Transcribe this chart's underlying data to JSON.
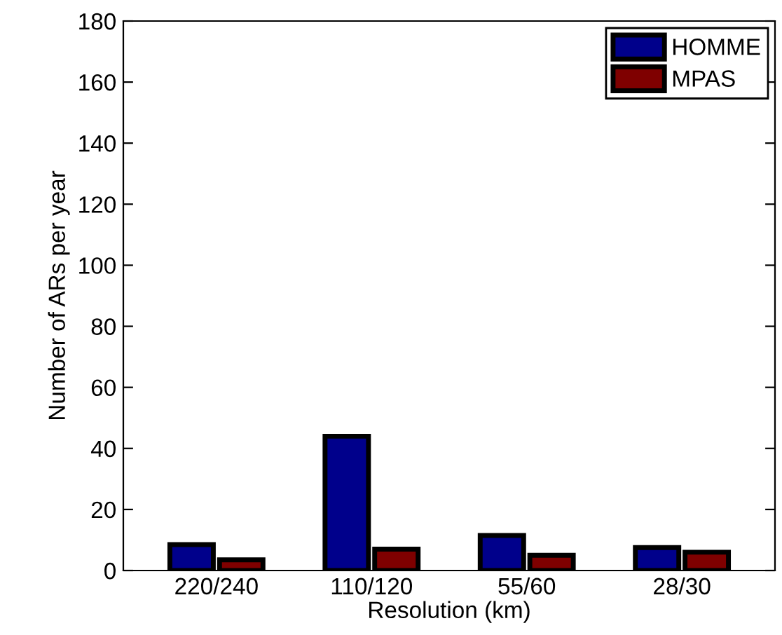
{
  "chart_data": {
    "type": "bar",
    "xlabel": "Resolution (km)",
    "ylabel": "Number of ARs per year",
    "categories": [
      "220/240",
      "110/120",
      "55/60",
      "28/30"
    ],
    "series": [
      {
        "name": "HOMME",
        "color": "#00008b",
        "values": [
          8.5,
          44,
          11.5,
          7.5
        ]
      },
      {
        "name": "MPAS",
        "color": "#7f0000",
        "values": [
          3.5,
          7,
          5,
          6
        ]
      }
    ],
    "ylim": [
      0,
      180
    ],
    "yticks": [
      0,
      20,
      40,
      60,
      80,
      100,
      120,
      140,
      160,
      180
    ],
    "grid": false,
    "legend": "top right"
  }
}
